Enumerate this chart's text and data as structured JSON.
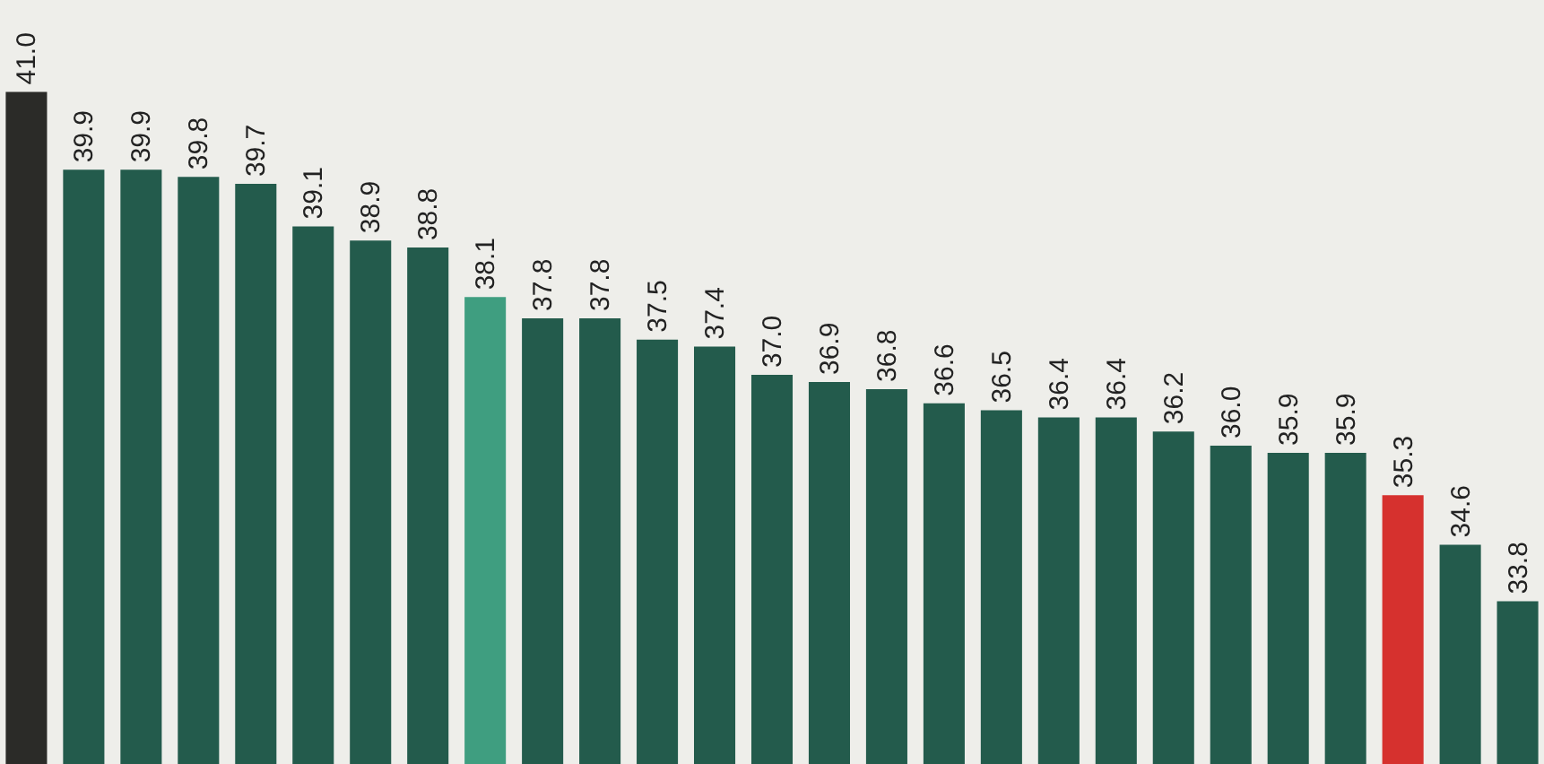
{
  "chart_data": {
    "type": "bar",
    "categories": [
      null,
      null,
      null,
      null,
      null,
      null,
      null,
      null,
      null,
      null,
      null,
      null,
      null,
      null,
      null,
      null,
      null,
      null,
      null,
      null,
      null,
      null,
      null,
      null,
      null,
      null,
      null
    ],
    "values": [
      41.0,
      39.9,
      39.9,
      39.8,
      39.7,
      39.1,
      38.9,
      38.8,
      38.1,
      37.8,
      37.8,
      37.5,
      37.4,
      37.0,
      36.9,
      36.8,
      36.6,
      36.5,
      36.4,
      36.4,
      36.2,
      36.0,
      35.9,
      35.9,
      35.3,
      34.6,
      33.8
    ],
    "colors": [
      "#2b2b28",
      "#235b4c",
      "#235b4c",
      "#235b4c",
      "#235b4c",
      "#235b4c",
      "#235b4c",
      "#235b4c",
      "#3f9e80",
      "#235b4c",
      "#235b4c",
      "#235b4c",
      "#235b4c",
      "#235b4c",
      "#235b4c",
      "#235b4c",
      "#235b4c",
      "#235b4c",
      "#235b4c",
      "#235b4c",
      "#235b4c",
      "#235b4c",
      "#235b4c",
      "#235b4c",
      "#d6312e",
      "#235b4c",
      "#235b4c"
    ],
    "value_labels": [
      "41.0",
      "39.9",
      "39.9",
      "39.8",
      "39.7",
      "39.1",
      "38.9",
      "38.8",
      "38.1",
      "37.8",
      "37.8",
      "37.5",
      "37.4",
      "37.0",
      "36.9",
      "36.8",
      "36.6",
      "36.5",
      "36.4",
      "36.4",
      "36.2",
      "36.0",
      "35.9",
      "35.9",
      "35.3",
      "34.6",
      "33.8"
    ],
    "ylim": [
      31.5,
      42.3
    ],
    "tick_labels": false
  }
}
